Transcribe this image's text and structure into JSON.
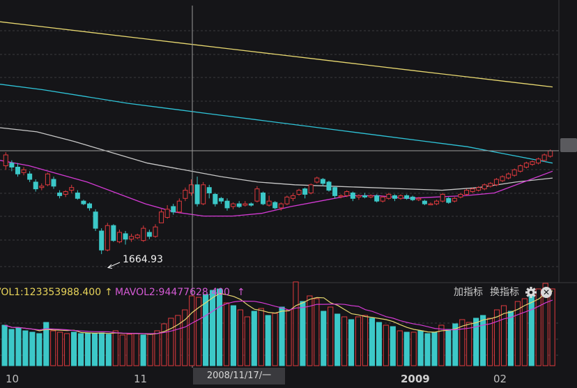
{
  "indicator_bar": {
    "vol_label": "VOL1:123353988.400",
    "vol_arrow": "↑",
    "mavol_label": "MAVOL2:94477628.400",
    "mavol_arrow": "↑",
    "add_indicator": "加指标",
    "swap_indicator": "换指标",
    "settings_icon": "gear-icon",
    "close_icon": "close-icon"
  },
  "crosshair": {
    "date": "2008/11/17/一"
  },
  "colors": {
    "background": "#151518",
    "up": "#e03a3e",
    "down": "#3cc8c8",
    "ma_yellow": "#e8d870",
    "ma_cyan": "#2fc4d8",
    "ma_gray": "#c8c8c8",
    "ma_magenta": "#d43ad4"
  },
  "chart_data": {
    "type": "candlestick",
    "x_labels": [
      "10",
      "11",
      "2009",
      "02"
    ],
    "low_annotation": "1664.93",
    "price_range": [
      1560,
      2600
    ],
    "candles": [
      [
        1990,
        2030,
        1975,
        2040
      ],
      [
        2000,
        1985,
        1970,
        2010
      ],
      [
        1985,
        1960,
        1950,
        2000
      ],
      [
        1965,
        1975,
        1955,
        1985
      ],
      [
        1960,
        1940,
        1930,
        1970
      ],
      [
        1930,
        1905,
        1895,
        1940
      ],
      [
        1910,
        1915,
        1900,
        1925
      ],
      [
        1920,
        1960,
        1915,
        1965
      ],
      [
        1940,
        1915,
        1905,
        1950
      ],
      [
        1890,
        1880,
        1870,
        1900
      ],
      [
        1885,
        1895,
        1875,
        1900
      ],
      [
        1900,
        1910,
        1890,
        1920
      ],
      [
        1890,
        1870,
        1865,
        1900
      ],
      [
        1860,
        1850,
        1845,
        1865
      ],
      [
        1850,
        1835,
        1825,
        1855
      ],
      [
        1820,
        1760,
        1750,
        1830
      ],
      [
        1750,
        1680,
        1665,
        1760
      ],
      [
        1680,
        1770,
        1675,
        1780
      ],
      [
        1770,
        1715,
        1710,
        1775
      ],
      [
        1710,
        1745,
        1705,
        1755
      ],
      [
        1740,
        1720,
        1700,
        1750
      ],
      [
        1720,
        1730,
        1710,
        1740
      ],
      [
        1725,
        1735,
        1720,
        1740
      ],
      [
        1715,
        1760,
        1710,
        1770
      ],
      [
        1745,
        1730,
        1720,
        1755
      ],
      [
        1730,
        1765,
        1725,
        1775
      ],
      [
        1780,
        1820,
        1780,
        1830
      ],
      [
        1800,
        1830,
        1795,
        1845
      ],
      [
        1840,
        1820,
        1810,
        1850
      ],
      [
        1820,
        1860,
        1815,
        1870
      ],
      [
        1870,
        1900,
        1860,
        1910
      ],
      [
        1890,
        1920,
        1880,
        1940
      ],
      [
        1920,
        1850,
        1840,
        1950
      ],
      [
        1850,
        1920,
        1845,
        1930
      ],
      [
        1910,
        1890,
        1870,
        1920
      ],
      [
        1885,
        1850,
        1840,
        1890
      ],
      [
        1870,
        1860,
        1850,
        1875
      ],
      [
        1860,
        1835,
        1825,
        1870
      ],
      [
        1840,
        1850,
        1830,
        1855
      ],
      [
        1850,
        1840,
        1835,
        1860
      ],
      [
        1845,
        1850,
        1840,
        1860
      ],
      [
        1850,
        1845,
        1840,
        1855
      ],
      [
        1860,
        1905,
        1855,
        1915
      ],
      [
        1890,
        1850,
        1845,
        1895
      ],
      [
        1845,
        1860,
        1840,
        1880
      ],
      [
        1855,
        1835,
        1830,
        1860
      ],
      [
        1835,
        1850,
        1825,
        1855
      ],
      [
        1850,
        1875,
        1845,
        1880
      ],
      [
        1870,
        1880,
        1860,
        1890
      ],
      [
        1885,
        1900,
        1880,
        1905
      ],
      [
        1905,
        1885,
        1870,
        1910
      ],
      [
        1890,
        1920,
        1885,
        1925
      ],
      [
        1930,
        1945,
        1925,
        1950
      ],
      [
        1940,
        1925,
        1915,
        1945
      ],
      [
        1930,
        1900,
        1895,
        1935
      ],
      [
        1910,
        1880,
        1870,
        1915
      ],
      [
        1880,
        1880,
        1870,
        1885
      ],
      [
        1880,
        1895,
        1875,
        1900
      ],
      [
        1890,
        1870,
        1860,
        1895
      ],
      [
        1875,
        1880,
        1865,
        1885
      ],
      [
        1880,
        1875,
        1870,
        1890
      ],
      [
        1875,
        1880,
        1870,
        1885
      ],
      [
        1880,
        1860,
        1855,
        1885
      ],
      [
        1860,
        1875,
        1855,
        1880
      ],
      [
        1870,
        1885,
        1865,
        1890
      ],
      [
        1880,
        1870,
        1860,
        1885
      ],
      [
        1870,
        1880,
        1865,
        1885
      ],
      [
        1880,
        1870,
        1865,
        1885
      ],
      [
        1875,
        1865,
        1860,
        1880
      ],
      [
        1865,
        1870,
        1860,
        1875
      ],
      [
        1860,
        1850,
        1845,
        1865
      ],
      [
        1850,
        1850,
        1845,
        1855
      ],
      [
        1850,
        1860,
        1845,
        1865
      ],
      [
        1860,
        1885,
        1855,
        1890
      ],
      [
        1870,
        1855,
        1850,
        1875
      ],
      [
        1860,
        1870,
        1855,
        1875
      ],
      [
        1875,
        1885,
        1870,
        1890
      ],
      [
        1885,
        1900,
        1880,
        1905
      ],
      [
        1895,
        1905,
        1890,
        1910
      ],
      [
        1900,
        1910,
        1895,
        1915
      ],
      [
        1905,
        1920,
        1900,
        1925
      ],
      [
        1915,
        1925,
        1910,
        1930
      ],
      [
        1920,
        1940,
        1915,
        1945
      ],
      [
        1935,
        1950,
        1930,
        1955
      ],
      [
        1945,
        1960,
        1940,
        1965
      ],
      [
        1955,
        1975,
        1950,
        1980
      ],
      [
        1970,
        1990,
        1965,
        1995
      ],
      [
        1985,
        2000,
        1980,
        2005
      ],
      [
        1995,
        2005,
        1990,
        2010
      ],
      [
        2000,
        2015,
        1995,
        2020
      ],
      [
        2010,
        2030,
        2005,
        2035
      ],
      [
        2025,
        2045,
        2020,
        2050
      ]
    ],
    "ma_series": [
      {
        "values": [
          2520,
          2500,
          2480,
          2460,
          2440,
          2420,
          2400,
          2380,
          2360,
          2340,
          2320,
          2300,
          2280
        ]
      },
      {
        "values": [
          2290,
          2270,
          2245,
          2220,
          2200,
          2180,
          2160,
          2140,
          2120,
          2100,
          2080,
          2060,
          2030,
          2000
        ]
      },
      {
        "values": [
          2130,
          2115,
          2080,
          2040,
          2000,
          1975,
          1950,
          1930,
          1920,
          1915,
          1910,
          1905,
          1900,
          1910,
          1930,
          1945
        ]
      },
      {
        "values": [
          2010,
          1990,
          1960,
          1930,
          1890,
          1850,
          1820,
          1805,
          1805,
          1815,
          1840,
          1860,
          1880,
          1880,
          1870,
          1875,
          1880,
          1890,
          1930,
          1970
        ]
      }
    ],
    "volume": {
      "vol1": 123353988.4,
      "mavol2": 94477628.4,
      "bars": [
        [
          58,
          0
        ],
        [
          52,
          0
        ],
        [
          54,
          0
        ],
        [
          50,
          0
        ],
        [
          48,
          0
        ],
        [
          46,
          0
        ],
        [
          62,
          0
        ],
        [
          50,
          1
        ],
        [
          48,
          1
        ],
        [
          46,
          1
        ],
        [
          48,
          0
        ],
        [
          46,
          0
        ],
        [
          47,
          0
        ],
        [
          46,
          0
        ],
        [
          47,
          0
        ],
        [
          45,
          0
        ],
        [
          50,
          1
        ],
        [
          44,
          1
        ],
        [
          45,
          1
        ],
        [
          46,
          1
        ],
        [
          44,
          0
        ],
        [
          45,
          1
        ],
        [
          50,
          1
        ],
        [
          60,
          1
        ],
        [
          68,
          1
        ],
        [
          72,
          1
        ],
        [
          80,
          1
        ],
        [
          100,
          1
        ],
        [
          98,
          1
        ],
        [
          102,
          0
        ],
        [
          108,
          0
        ],
        [
          110,
          0
        ],
        [
          90,
          1
        ],
        [
          86,
          0
        ],
        [
          80,
          1
        ],
        [
          70,
          1
        ],
        [
          78,
          0
        ],
        [
          82,
          1
        ],
        [
          72,
          0
        ],
        [
          75,
          1
        ],
        [
          84,
          0
        ],
        [
          80,
          1
        ],
        [
          120,
          1
        ],
        [
          92,
          0
        ],
        [
          100,
          1
        ],
        [
          96,
          1
        ],
        [
          78,
          0
        ],
        [
          84,
          1
        ],
        [
          74,
          0
        ],
        [
          70,
          1
        ],
        [
          66,
          0
        ],
        [
          70,
          1
        ],
        [
          72,
          1
        ],
        [
          68,
          0
        ],
        [
          62,
          0
        ],
        [
          58,
          1
        ],
        [
          56,
          0
        ],
        [
          50,
          1
        ],
        [
          48,
          0
        ],
        [
          48,
          1
        ],
        [
          50,
          0
        ],
        [
          46,
          0
        ],
        [
          48,
          0
        ],
        [
          58,
          1
        ],
        [
          52,
          0
        ],
        [
          60,
          0
        ],
        [
          66,
          1
        ],
        [
          62,
          1
        ],
        [
          68,
          0
        ],
        [
          72,
          0
        ],
        [
          68,
          1
        ],
        [
          80,
          1
        ],
        [
          86,
          1
        ],
        [
          78,
          0
        ],
        [
          92,
          1
        ],
        [
          96,
          1
        ],
        [
          102,
          0
        ],
        [
          110,
          1
        ],
        [
          118,
          1
        ],
        [
          110,
          1
        ]
      ]
    }
  }
}
